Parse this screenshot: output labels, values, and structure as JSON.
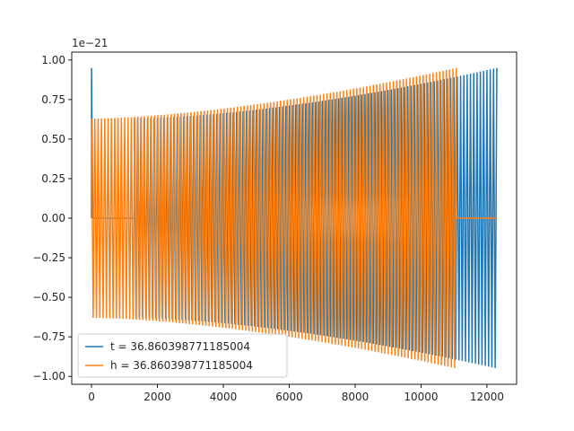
{
  "chart_data": {
    "type": "line",
    "title": "",
    "xlabel": "",
    "ylabel": "",
    "offset_text": "1e−21",
    "xlim": [
      -600,
      12900
    ],
    "ylim": [
      -1.05,
      1.05
    ],
    "y_scale_exponent": -21,
    "xticks": [
      0,
      2000,
      4000,
      6000,
      8000,
      10000,
      12000
    ],
    "xtick_labels": [
      "0",
      "2000",
      "4000",
      "6000",
      "8000",
      "10000",
      "12000"
    ],
    "yticks": [
      1.0,
      0.75,
      0.5,
      0.25,
      0.0,
      -0.25,
      -0.5,
      -0.75,
      -1.0
    ],
    "ytick_labels": [
      "1.00",
      "0.75",
      "0.50",
      "0.25",
      "0.00",
      "−0.25",
      "−0.50",
      "−0.75",
      "−1.00"
    ],
    "grid": false,
    "legend_position": "lower-left",
    "series": [
      {
        "name": "t = 36.860398771185004",
        "color": "#1f77b4",
        "signal": {
          "zero_until": 1300,
          "oscillation_start": 1300,
          "oscillation_end": 12300,
          "spike_at": 0,
          "spike_peak": 0.95,
          "amplitude_start": 0.63,
          "amplitude_end": 0.95,
          "cycles": 110
        }
      },
      {
        "name": "h = 36.860398771185004",
        "color": "#ff7f0e",
        "signal": {
          "oscillation_start": 0,
          "oscillation_end": 11070,
          "zero_from": 11070,
          "zero_until": 12300,
          "amplitude_start": 0.63,
          "amplitude_end": 0.95,
          "cycles": 110
        }
      }
    ]
  }
}
